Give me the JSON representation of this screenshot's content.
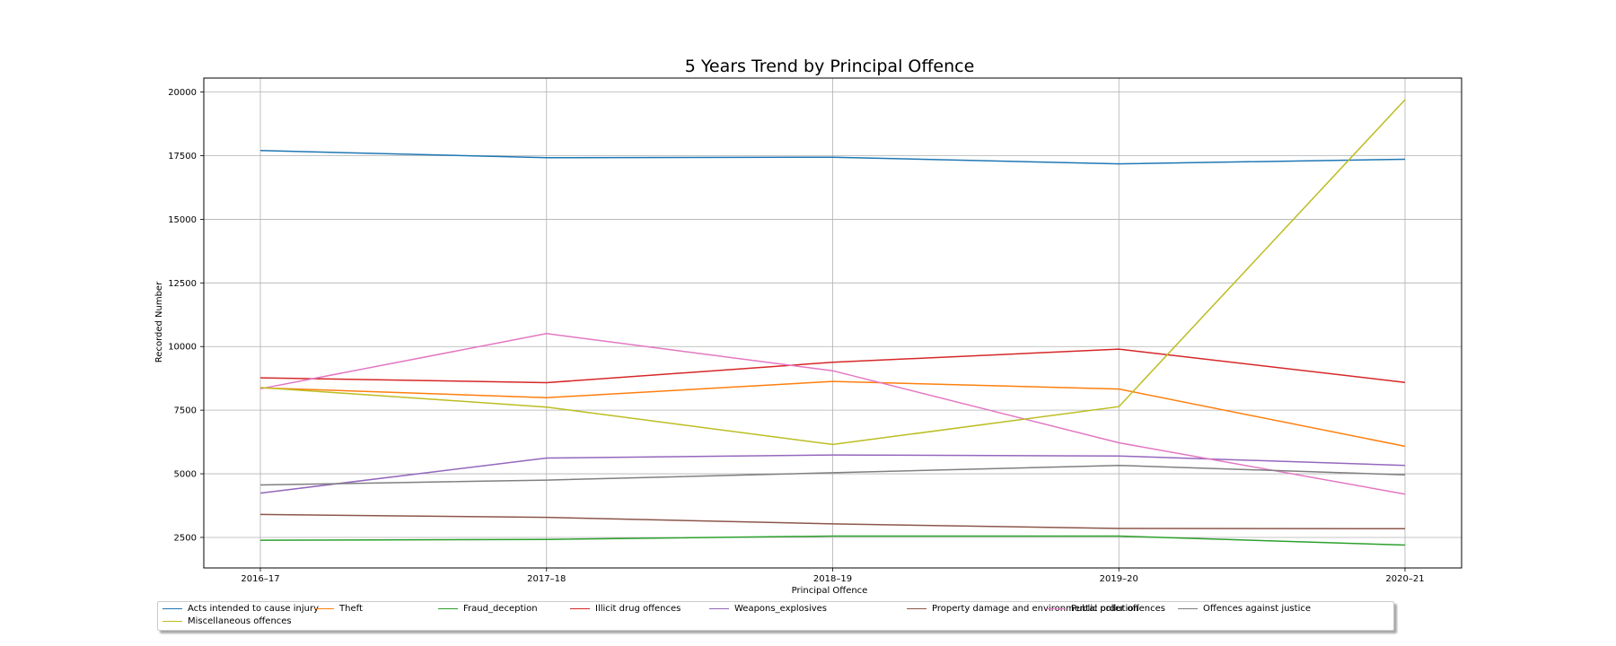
{
  "chart_data": {
    "type": "line",
    "title": "5 Years Trend by Principal Offence",
    "xlabel": "Principal Offence",
    "ylabel": "Recorded Number",
    "categories": [
      "2016–17",
      "2017–18",
      "2018–19",
      "2019–20",
      "2020–21"
    ],
    "ylim": [
      1300,
      20550
    ],
    "yticks": [
      2500,
      5000,
      7500,
      10000,
      12500,
      15000,
      17500,
      20000
    ],
    "grid": true,
    "legend_position": "bottom",
    "series": [
      {
        "name": "Acts intended to cause injury",
        "color": "#1f77b4",
        "values": [
          17700,
          17420,
          17440,
          17180,
          17360
        ]
      },
      {
        "name": "Theft",
        "color": "#ff7f0e",
        "values": [
          8380,
          7990,
          8630,
          8330,
          6080
        ]
      },
      {
        "name": "Fraud_deception",
        "color": "#2ca02c",
        "values": [
          2390,
          2420,
          2550,
          2550,
          2200
        ]
      },
      {
        "name": "Illicit drug offences",
        "color": "#d62728",
        "values": [
          8770,
          8580,
          9380,
          9900,
          8590
        ]
      },
      {
        "name": "Weapons_explosives",
        "color": "#9467bd",
        "values": [
          4240,
          5620,
          5740,
          5700,
          5330
        ]
      },
      {
        "name": "Property damage and environmental pollution",
        "color": "#8c564b",
        "values": [
          3400,
          3290,
          3030,
          2850,
          2840
        ]
      },
      {
        "name": "Public order offences",
        "color": "#e377c2",
        "values": [
          8340,
          10510,
          9050,
          6220,
          4200
        ]
      },
      {
        "name": "Offences against justice",
        "color": "#7f7f7f",
        "values": [
          4560,
          4750,
          5040,
          5330,
          4960
        ]
      },
      {
        "name": "Miscellaneous offences",
        "color": "#bcbd22",
        "values": [
          8390,
          7620,
          6150,
          7640,
          19700
        ]
      }
    ]
  }
}
